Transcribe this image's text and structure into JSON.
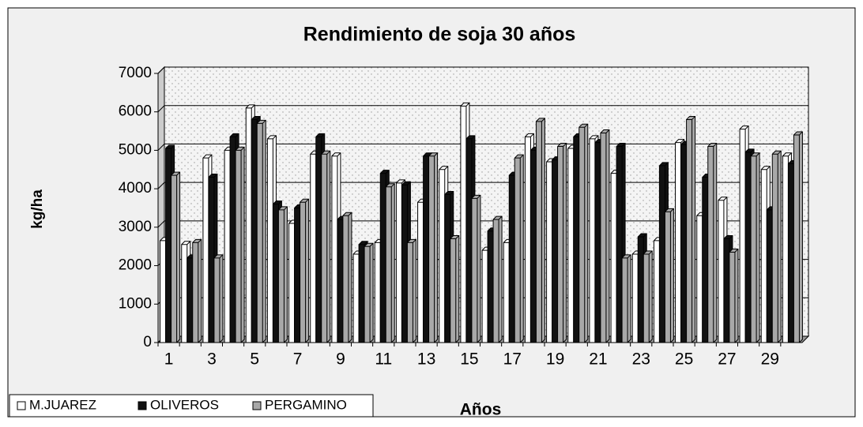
{
  "chart_data": {
    "type": "bar3d",
    "title": "Rendimiento de soja 30 años",
    "x_label": "Años",
    "y_label": "kg/ha",
    "categories": [
      "1",
      null,
      "3",
      null,
      "5",
      null,
      "7",
      null,
      "9",
      null,
      "11",
      null,
      "13",
      null,
      "15",
      null,
      "17",
      null,
      "19",
      null,
      "21",
      null,
      "23",
      null,
      "25",
      null,
      "27",
      null,
      "29",
      null
    ],
    "series": [
      {
        "name": "M.JUAREZ",
        "color": "#ffffff",
        "values": [
          2650,
          2550,
          4800,
          5000,
          6100,
          5300,
          3100,
          4900,
          4850,
          2300,
          2600,
          4150,
          3650,
          4500,
          6150,
          2400,
          2600,
          5350,
          4700,
          5050,
          5300,
          4400,
          2300,
          2650,
          5200,
          3300,
          3700,
          5550,
          4500,
          4850
        ]
      },
      {
        "name": "OLIVEROS",
        "color": "#111111",
        "values": [
          5050,
          2200,
          4300,
          5350,
          5800,
          3600,
          3500,
          5350,
          3200,
          2550,
          4400,
          4100,
          4850,
          3850,
          5300,
          2900,
          4350,
          5000,
          4750,
          5350,
          5200,
          5100,
          2750,
          4600,
          5150,
          4300,
          2700,
          4950,
          3450,
          4650
        ]
      },
      {
        "name": "PERGAMINO",
        "color": "#a8a8a8",
        "values": [
          4350,
          2600,
          2200,
          5000,
          5700,
          3450,
          3650,
          4900,
          3300,
          2500,
          4050,
          2600,
          4850,
          2700,
          3750,
          3200,
          4800,
          5750,
          5100,
          5600,
          5450,
          2200,
          2300,
          3400,
          5800,
          5100,
          2350,
          4850,
          4900,
          5400
        ]
      }
    ],
    "ylim": [
      0,
      7000
    ],
    "yticks": [
      0,
      1000,
      2000,
      3000,
      4000,
      5000,
      6000,
      7000
    ],
    "grid": true,
    "legend": "bottom-left"
  }
}
